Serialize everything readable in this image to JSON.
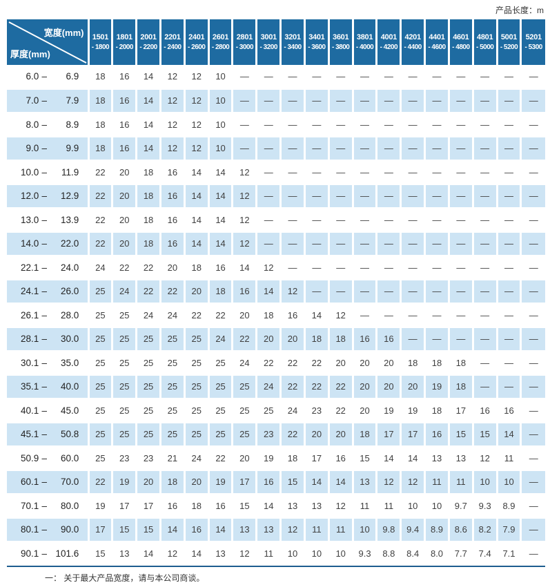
{
  "page": {
    "product_length_label": "产品长度：m"
  },
  "colors": {
    "header_blue": "#1e6ba1",
    "stripe_blue": "#cde4f4",
    "divider_blue": "#1d5d8f"
  },
  "table": {
    "corner": {
      "width_label": "宽度(mm)",
      "thickness_label": "厚度(mm)"
    },
    "columns": [
      {
        "line1": "1501",
        "line2": "- 1800"
      },
      {
        "line1": "1801",
        "line2": "- 2000"
      },
      {
        "line1": "2001",
        "line2": "- 2200"
      },
      {
        "line1": "2201",
        "line2": "- 2400"
      },
      {
        "line1": "2401",
        "line2": "- 2600"
      },
      {
        "line1": "2601",
        "line2": "- 2800"
      },
      {
        "line1": "2801",
        "line2": "- 3000"
      },
      {
        "line1": "3001",
        "line2": "- 3200"
      },
      {
        "line1": "3201",
        "line2": "- 3400"
      },
      {
        "line1": "3401",
        "line2": "- 3600"
      },
      {
        "line1": "3601",
        "line2": "- 3800"
      },
      {
        "line1": "3801",
        "line2": "- 4000"
      },
      {
        "line1": "4001",
        "line2": "- 4200"
      },
      {
        "line1": "4201",
        "line2": "- 4400"
      },
      {
        "line1": "4401",
        "line2": "- 4600"
      },
      {
        "line1": "4601",
        "line2": "- 4800"
      },
      {
        "line1": "4801",
        "line2": "- 5000"
      },
      {
        "line1": "5001",
        "line2": "- 5200"
      },
      {
        "line1": "5201",
        "line2": "- 5300"
      }
    ],
    "rows": [
      {
        "min": "6.0",
        "dash": "–",
        "max": "6.9",
        "values": [
          "18",
          "16",
          "14",
          "12",
          "12",
          "10",
          "—",
          "—",
          "—",
          "—",
          "—",
          "—",
          "—",
          "—",
          "—",
          "—",
          "—",
          "—",
          "—"
        ]
      },
      {
        "min": "7.0",
        "dash": "–",
        "max": "7.9",
        "values": [
          "18",
          "16",
          "14",
          "12",
          "12",
          "10",
          "—",
          "—",
          "—",
          "—",
          "—",
          "—",
          "—",
          "—",
          "—",
          "—",
          "—",
          "—",
          "—"
        ]
      },
      {
        "min": "8.0",
        "dash": "–",
        "max": "8.9",
        "values": [
          "18",
          "16",
          "14",
          "12",
          "12",
          "10",
          "—",
          "—",
          "—",
          "—",
          "—",
          "—",
          "—",
          "—",
          "—",
          "—",
          "—",
          "—",
          "—"
        ]
      },
      {
        "min": "9.0",
        "dash": "–",
        "max": "9.9",
        "values": [
          "18",
          "16",
          "14",
          "12",
          "12",
          "10",
          "—",
          "—",
          "—",
          "—",
          "—",
          "—",
          "—",
          "—",
          "—",
          "—",
          "—",
          "—",
          "—"
        ]
      },
      {
        "min": "10.0",
        "dash": "–",
        "max": "11.9",
        "values": [
          "22",
          "20",
          "18",
          "16",
          "14",
          "14",
          "12",
          "—",
          "—",
          "—",
          "—",
          "—",
          "—",
          "—",
          "—",
          "—",
          "—",
          "—",
          "—"
        ]
      },
      {
        "min": "12.0",
        "dash": "–",
        "max": "12.9",
        "values": [
          "22",
          "20",
          "18",
          "16",
          "14",
          "14",
          "12",
          "—",
          "—",
          "—",
          "—",
          "—",
          "—",
          "—",
          "—",
          "—",
          "—",
          "—",
          "—"
        ]
      },
      {
        "min": "13.0",
        "dash": "–",
        "max": "13.9",
        "values": [
          "22",
          "20",
          "18",
          "16",
          "14",
          "14",
          "12",
          "—",
          "—",
          "—",
          "—",
          "—",
          "—",
          "—",
          "—",
          "—",
          "—",
          "—",
          "—"
        ]
      },
      {
        "min": "14.0",
        "dash": "–",
        "max": "22.0",
        "values": [
          "22",
          "20",
          "18",
          "16",
          "14",
          "14",
          "12",
          "—",
          "—",
          "—",
          "—",
          "—",
          "—",
          "—",
          "—",
          "—",
          "—",
          "—",
          "—"
        ]
      },
      {
        "min": "22.1",
        "dash": "–",
        "max": "24.0",
        "values": [
          "24",
          "22",
          "22",
          "20",
          "18",
          "16",
          "14",
          "12",
          "—",
          "—",
          "—",
          "—",
          "—",
          "—",
          "—",
          "—",
          "—",
          "—",
          "—"
        ]
      },
      {
        "min": "24.1",
        "dash": "–",
        "max": "26.0",
        "values": [
          "25",
          "24",
          "22",
          "22",
          "20",
          "18",
          "16",
          "14",
          "12",
          "—",
          "—",
          "—",
          "—",
          "—",
          "—",
          "—",
          "—",
          "—",
          "—"
        ]
      },
      {
        "min": "26.1",
        "dash": "–",
        "max": "28.0",
        "values": [
          "25",
          "25",
          "24",
          "24",
          "22",
          "22",
          "20",
          "18",
          "16",
          "14",
          "12",
          "—",
          "—",
          "—",
          "—",
          "—",
          "—",
          "—",
          "—"
        ]
      },
      {
        "min": "28.1",
        "dash": "–",
        "max": "30.0",
        "values": [
          "25",
          "25",
          "25",
          "25",
          "25",
          "24",
          "22",
          "20",
          "20",
          "18",
          "18",
          "16",
          "16",
          "—",
          "—",
          "—",
          "—",
          "—",
          "—"
        ]
      },
      {
        "min": "30.1",
        "dash": "–",
        "max": "35.0",
        "values": [
          "25",
          "25",
          "25",
          "25",
          "25",
          "25",
          "24",
          "22",
          "22",
          "22",
          "20",
          "20",
          "20",
          "18",
          "18",
          "18",
          "—",
          "—",
          "—"
        ]
      },
      {
        "min": "35.1",
        "dash": "–",
        "max": "40.0",
        "values": [
          "25",
          "25",
          "25",
          "25",
          "25",
          "25",
          "25",
          "24",
          "22",
          "22",
          "22",
          "20",
          "20",
          "20",
          "19",
          "18",
          "—",
          "—",
          "—"
        ]
      },
      {
        "min": "40.1",
        "dash": "–",
        "max": "45.0",
        "values": [
          "25",
          "25",
          "25",
          "25",
          "25",
          "25",
          "25",
          "25",
          "24",
          "23",
          "22",
          "20",
          "19",
          "19",
          "18",
          "17",
          "16",
          "16",
          "—"
        ]
      },
      {
        "min": "45.1",
        "dash": "–",
        "max": "50.8",
        "values": [
          "25",
          "25",
          "25",
          "25",
          "25",
          "25",
          "25",
          "23",
          "22",
          "20",
          "20",
          "18",
          "17",
          "17",
          "16",
          "15",
          "15",
          "14",
          "—"
        ]
      },
      {
        "min": "50.9",
        "dash": "–",
        "max": "60.0",
        "values": [
          "25",
          "23",
          "23",
          "21",
          "24",
          "22",
          "20",
          "19",
          "18",
          "17",
          "16",
          "15",
          "14",
          "14",
          "13",
          "13",
          "12",
          "11",
          "—"
        ]
      },
      {
        "min": "60.1",
        "dash": "–",
        "max": "70.0",
        "values": [
          "22",
          "19",
          "20",
          "18",
          "20",
          "19",
          "17",
          "16",
          "15",
          "14",
          "14",
          "13",
          "12",
          "12",
          "11",
          "11",
          "10",
          "10",
          "—"
        ]
      },
      {
        "min": "70.1",
        "dash": "–",
        "max": "80.0",
        "values": [
          "19",
          "17",
          "17",
          "16",
          "18",
          "16",
          "15",
          "14",
          "13",
          "13",
          "12",
          "11",
          "11",
          "10",
          "10",
          "9.7",
          "9.3",
          "8.9",
          "—"
        ]
      },
      {
        "min": "80.1",
        "dash": "–",
        "max": "90.0",
        "values": [
          "17",
          "15",
          "15",
          "14",
          "16",
          "14",
          "13",
          "13",
          "12",
          "11",
          "11",
          "10",
          "9.8",
          "9.4",
          "8.9",
          "8.6",
          "8.2",
          "7.9",
          "—"
        ]
      },
      {
        "min": "90.1",
        "dash": "–",
        "max": "101.6",
        "values": [
          "15",
          "13",
          "14",
          "12",
          "14",
          "13",
          "12",
          "11",
          "10",
          "10",
          "10",
          "9.3",
          "8.8",
          "8.4",
          "8.0",
          "7.7",
          "7.4",
          "7.1",
          "—"
        ]
      }
    ]
  },
  "footer": {
    "note": "一： 关于最大产品宽度，请与本公司商谈。"
  }
}
